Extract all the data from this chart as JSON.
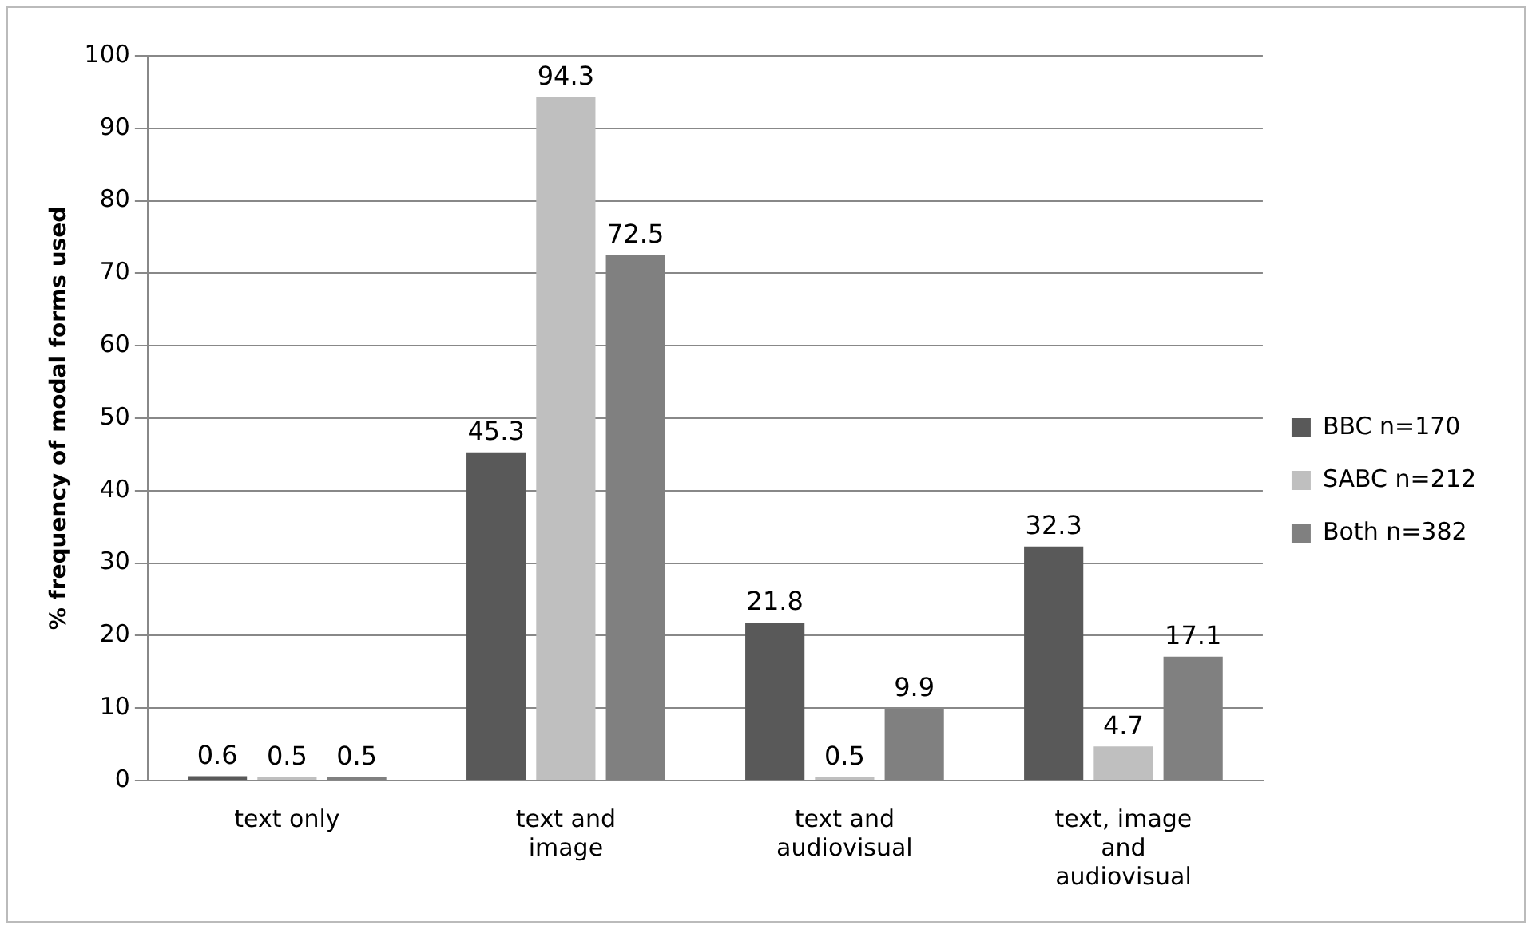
{
  "chart_data": {
    "type": "bar",
    "ylabel": "% frequency of modal forms used",
    "categories": [
      "text only",
      "text and image",
      "text and audiovisual",
      "text, image and audiovisual"
    ],
    "series": [
      {
        "name": "BBC n=170",
        "color": "#595959",
        "values": [
          0.6,
          45.3,
          21.8,
          32.3
        ]
      },
      {
        "name": "SABC n=212",
        "color": "#bfbfbf",
        "values": [
          0.5,
          94.3,
          0.5,
          4.7
        ]
      },
      {
        "name": "Both n=382",
        "color": "#808080",
        "values": [
          0.5,
          72.5,
          9.9,
          17.1
        ]
      }
    ],
    "ylim": [
      0,
      100
    ],
    "yticks": [
      0,
      10,
      20,
      30,
      40,
      50,
      60,
      70,
      80,
      90,
      100
    ],
    "grid": "y",
    "legend": "right",
    "data_labels": true
  }
}
